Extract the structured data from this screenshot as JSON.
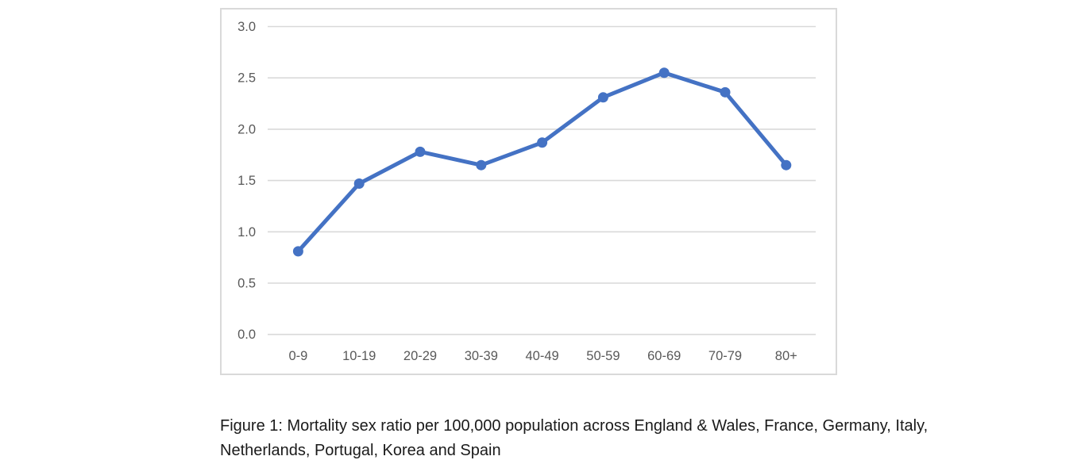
{
  "chart_data": {
    "type": "line",
    "categories": [
      "0-9",
      "10-19",
      "20-29",
      "30-39",
      "40-49",
      "50-59",
      "60-69",
      "70-79",
      "80+"
    ],
    "values": [
      0.81,
      1.47,
      1.78,
      1.65,
      1.87,
      2.31,
      2.55,
      2.36,
      1.65
    ],
    "series_name": "Mortality sex ratio",
    "title": "",
    "xlabel": "",
    "ylabel": "",
    "ylim": [
      0.0,
      3.0
    ],
    "ytick_step": 0.5,
    "ytick_labels": [
      "0.0",
      "0.5",
      "1.0",
      "1.5",
      "2.0",
      "2.5",
      "3.0"
    ],
    "grid": true,
    "legend_position": "none",
    "line_color": "#4472C4",
    "marker_color": "#4472C4",
    "gridline_color": "#D9D9D9",
    "frame_color": "#D9D9D9",
    "tick_label_color": "#595959",
    "background_color": "#FFFFFF"
  },
  "caption": {
    "lines": [
      "Figure 1: Mortality sex ratio per 100,000 population across England & Wales, France, Germany, Italy,",
      "Netherlands, Portugal, Korea and Spain"
    ],
    "full_text": "Figure 1: Mortality sex ratio per 100,000 population across England & Wales, France, Germany, Italy, Netherlands, Portugal, Korea and Spain"
  }
}
